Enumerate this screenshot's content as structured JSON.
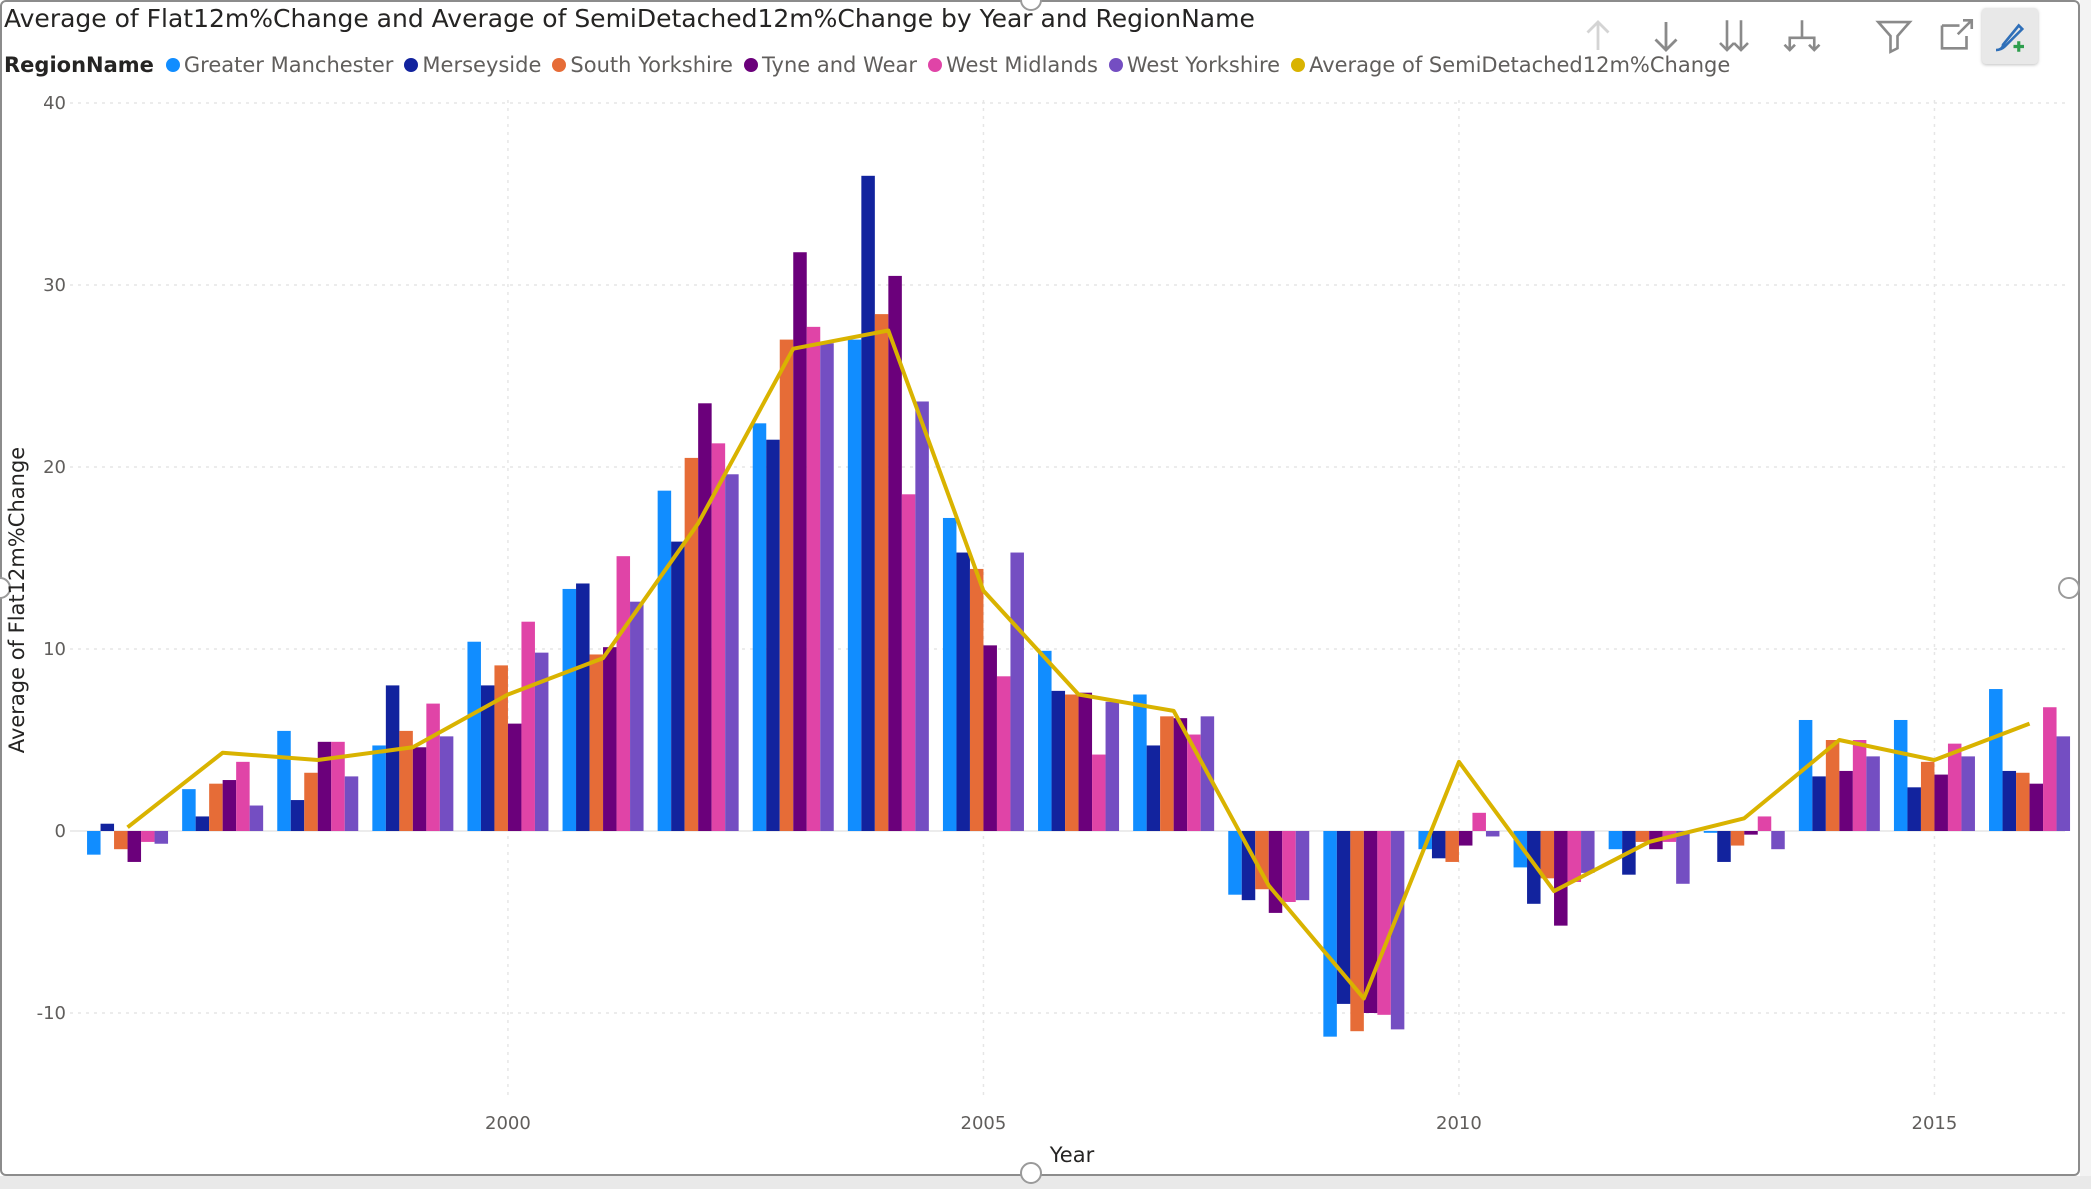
{
  "chart_data": {
    "type": "bar",
    "title": "Average of Flat12m%Change and Average of SemiDetached12m%Change by Year and RegionName",
    "xlabel": "Year",
    "ylabel": "Average of Flat12m%Change",
    "ylim": [
      -15,
      40
    ],
    "yticks": [
      -10,
      0,
      10,
      20,
      30,
      40
    ],
    "xticks": [
      2000,
      2005,
      2010,
      2015
    ],
    "x": [
      1996,
      1997,
      1998,
      1999,
      2000,
      2001,
      2002,
      2003,
      2004,
      2005,
      2006,
      2007,
      2008,
      2009,
      2010,
      2011,
      2012,
      2013,
      2014,
      2015,
      2016
    ],
    "grid": true,
    "legend_placement": "top-left",
    "legend_title": "RegionName",
    "series": [
      {
        "name": "Greater Manchester",
        "color": "#118dff",
        "values": [
          -1.3,
          2.3,
          5.5,
          4.7,
          10.4,
          13.3,
          18.7,
          22.4,
          27.0,
          17.2,
          9.9,
          7.5,
          -3.5,
          -11.3,
          -1.0,
          -2.0,
          -1.0,
          -0.1,
          6.1,
          6.1,
          7.8
        ]
      },
      {
        "name": "Merseyside",
        "color": "#12239e",
        "values": [
          0.4,
          0.8,
          1.7,
          8.0,
          8.0,
          13.6,
          15.9,
          21.5,
          36.0,
          15.3,
          7.7,
          4.7,
          -3.8,
          -9.5,
          -1.5,
          -4.0,
          -2.4,
          -1.7,
          3.0,
          2.4,
          3.3
        ]
      },
      {
        "name": "South Yorkshire",
        "color": "#e66c37",
        "values": [
          -1.0,
          2.6,
          3.2,
          5.5,
          9.1,
          9.7,
          20.5,
          27.0,
          28.4,
          14.4,
          7.5,
          6.3,
          -3.2,
          -11.0,
          -1.7,
          -2.6,
          -0.6,
          -0.8,
          5.0,
          3.8,
          3.2
        ]
      },
      {
        "name": "Tyne and Wear",
        "color": "#6b007b",
        "values": [
          -1.7,
          2.8,
          4.9,
          4.6,
          5.9,
          10.1,
          23.5,
          31.8,
          30.5,
          10.2,
          7.6,
          6.2,
          -4.5,
          -10.0,
          -0.8,
          -5.2,
          -1.0,
          -0.2,
          3.3,
          3.1,
          2.6
        ]
      },
      {
        "name": "West Midlands",
        "color": "#e044a7",
        "values": [
          -0.6,
          3.8,
          4.9,
          7.0,
          11.5,
          15.1,
          21.3,
          27.7,
          18.5,
          8.5,
          4.2,
          5.3,
          -3.9,
          -10.1,
          1.0,
          -2.8,
          -0.6,
          0.8,
          5.0,
          4.8,
          6.8
        ]
      },
      {
        "name": "West Yorkshire",
        "color": "#744ec2",
        "values": [
          -0.7,
          1.4,
          3.0,
          5.2,
          9.8,
          12.6,
          19.6,
          26.8,
          23.6,
          15.3,
          7.1,
          6.3,
          -3.8,
          -10.9,
          -0.3,
          -2.3,
          -2.9,
          -1.0,
          4.1,
          4.1,
          5.2
        ]
      }
    ],
    "line_series": {
      "name": "Average of SemiDetached12m%Change",
      "color": "#d9b300",
      "values": [
        0.2,
        4.3,
        3.9,
        4.6,
        7.5,
        9.5,
        16.9,
        26.5,
        27.5,
        13.2,
        7.5,
        6.6,
        -3.0,
        -9.2,
        3.8,
        -3.3,
        -0.6,
        0.7,
        5.0,
        3.9,
        5.9
      ]
    }
  },
  "toolbar": {
    "icons": [
      "drill-up-icon",
      "drill-down-icon",
      "expand-next-level-icon",
      "expand-hierarchy-icon",
      "filter-icon",
      "focus-mode-icon",
      "format-visual-icon"
    ]
  }
}
